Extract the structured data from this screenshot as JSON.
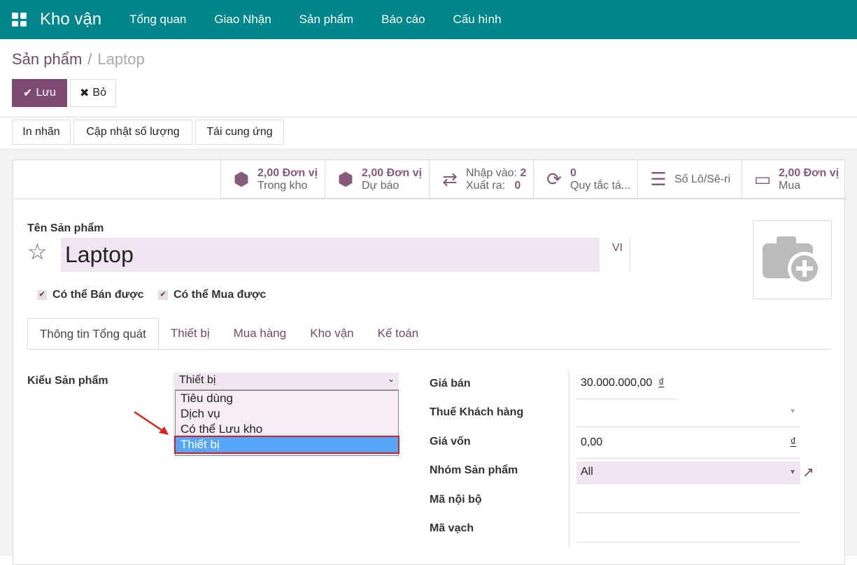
{
  "topbar": {
    "app": "Kho vận",
    "menu": [
      "Tổng quan",
      "Giao Nhận",
      "Sản phẩm",
      "Báo cáo",
      "Cấu hình"
    ]
  },
  "breadcrumb": {
    "parent": "Sản phẩm",
    "current": "Laptop"
  },
  "actions": {
    "save": "Lưu",
    "discard": "Bỏ"
  },
  "toolbar": [
    "In nhãn",
    "Cập nhật số lượng",
    "Tái cung ứng"
  ],
  "stats": [
    {
      "value": "2,00 Đơn vị",
      "label": "Trong kho",
      "icon": "cubes-icon"
    },
    {
      "value": "2,00 Đơn vị",
      "label": "Dự báo",
      "icon": "cubes-icon"
    },
    {
      "in_label": "Nhập vào:",
      "in_value": "2",
      "out_label": "Xuất ra:",
      "out_value": "0",
      "icon": "exchange-icon"
    },
    {
      "value": "0",
      "label": "Quy tắc tá...",
      "icon": "refresh-icon"
    },
    {
      "label": "Số Lô/Sê-ri",
      "icon": "bars-icon"
    },
    {
      "value": "2,00 Đơn vị",
      "label": "Mua",
      "icon": "credit-card-icon"
    }
  ],
  "product": {
    "name_label": "Tên Sản phẩm",
    "name": "Laptop",
    "lang": "VI",
    "can_sell": "Có thể Bán được",
    "can_buy": "Có thể Mua được"
  },
  "tabs": [
    "Thông tin Tổng quát",
    "Thiết bị",
    "Mua hàng",
    "Kho vận",
    "Kế toán"
  ],
  "general": {
    "type_label": "Kiểu Sản phẩm",
    "type_value": "Thiết bị",
    "type_options": [
      "Tiêu dùng",
      "Dịch vụ",
      "Có thể Lưu kho",
      "Thiết bị"
    ],
    "fields": [
      {
        "label": "Giá bán",
        "value": "30.000.000,00",
        "currency": "₫"
      },
      {
        "label": "Thuế Khách hàng",
        "value": ""
      },
      {
        "label": "Giá vốn",
        "value": "0,00",
        "currency": "₫"
      },
      {
        "label": "Nhóm Sản phẩm",
        "value": "All"
      },
      {
        "label": "Mã nội bộ",
        "value": ""
      },
      {
        "label": "Mã vạch",
        "value": ""
      }
    ]
  },
  "colors": {
    "topbar": "#00868b",
    "primary": "#7c4a73",
    "highlight": "#56a6fb",
    "arrow": "#e02020"
  }
}
